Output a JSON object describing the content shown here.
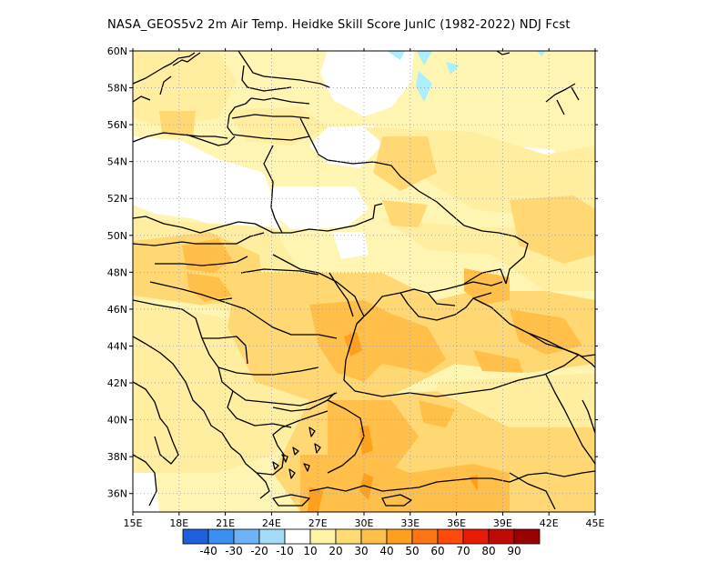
{
  "title": "NASA_GEOS5v2  2m Air Temp. Heidke Skill Score JunIC (1982-2022) NDJ Fcst",
  "map": {
    "lon_range": [
      15,
      45
    ],
    "lat_range": [
      35,
      60
    ],
    "lon_ticks": [
      "15E",
      "18E",
      "21E",
      "24E",
      "27E",
      "30E",
      "33E",
      "36E",
      "39E",
      "42E",
      "45E"
    ],
    "lat_ticks": [
      "36N",
      "38N",
      "40N",
      "42N",
      "44N",
      "46N",
      "48N",
      "50N",
      "52N",
      "54N",
      "56N",
      "58N",
      "60N"
    ],
    "colors": {
      "ocean": "#fffac8",
      "land_background": "#fff5b3",
      "score_10_20": "#ffeea0",
      "score_20_30": "#ffd873",
      "score_30_40": "#ffbf49",
      "score_40_50": "#ff9f1a",
      "no_skill": "#ffffff",
      "negative": "#aaeeff"
    }
  },
  "colorbar": {
    "labels": [
      "-40",
      "-30",
      "-20",
      "-10",
      "10",
      "20",
      "30",
      "40",
      "50",
      "60",
      "70",
      "80",
      "90"
    ],
    "colors": [
      "#1f5fdc",
      "#3b8ff0",
      "#6cb2f5",
      "#a4dcf8",
      "#ffffff",
      "#fff3a6",
      "#ffdc73",
      "#ffbf4a",
      "#ff9f1f",
      "#ff7413",
      "#ff4a0b",
      "#e81c05",
      "#c00a03",
      "#9a0202"
    ]
  }
}
